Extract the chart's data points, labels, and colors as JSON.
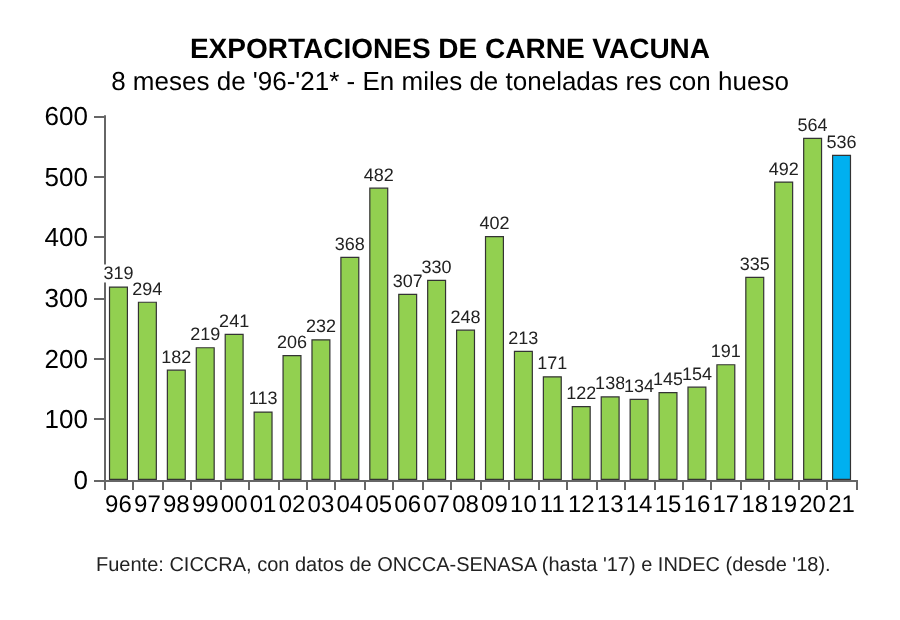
{
  "chart_data": {
    "type": "bar",
    "title": "EXPORTACIONES DE CARNE VACUNA",
    "subtitle": "8 meses de '96-'21* - En miles de toneladas res con hueso",
    "categories": [
      "96",
      "97",
      "98",
      "99",
      "00",
      "01",
      "02",
      "03",
      "04",
      "05",
      "06",
      "07",
      "08",
      "09",
      "10",
      "11",
      "12",
      "13",
      "14",
      "15",
      "16",
      "17",
      "18",
      "19",
      "20",
      "21"
    ],
    "values": [
      319,
      294,
      182,
      219,
      241,
      113,
      206,
      232,
      368,
      482,
      307,
      330,
      248,
      402,
      213,
      171,
      122,
      138,
      134,
      145,
      154,
      191,
      335,
      492,
      564,
      536
    ],
    "colors": [
      "#92d050",
      "#92d050",
      "#92d050",
      "#92d050",
      "#92d050",
      "#92d050",
      "#92d050",
      "#92d050",
      "#92d050",
      "#92d050",
      "#92d050",
      "#92d050",
      "#92d050",
      "#92d050",
      "#92d050",
      "#92d050",
      "#92d050",
      "#92d050",
      "#92d050",
      "#92d050",
      "#92d050",
      "#92d050",
      "#92d050",
      "#92d050",
      "#92d050",
      "#00b0f0"
    ],
    "ylim": [
      0,
      600
    ],
    "yticks": [
      0,
      100,
      200,
      300,
      400,
      500,
      600
    ],
    "grid": false,
    "data_labels": true,
    "annotations": [
      "Fuente: CICCRA, con datos de ONCCA-SENASA (hasta '17) e INDEC (desde '18)."
    ]
  }
}
